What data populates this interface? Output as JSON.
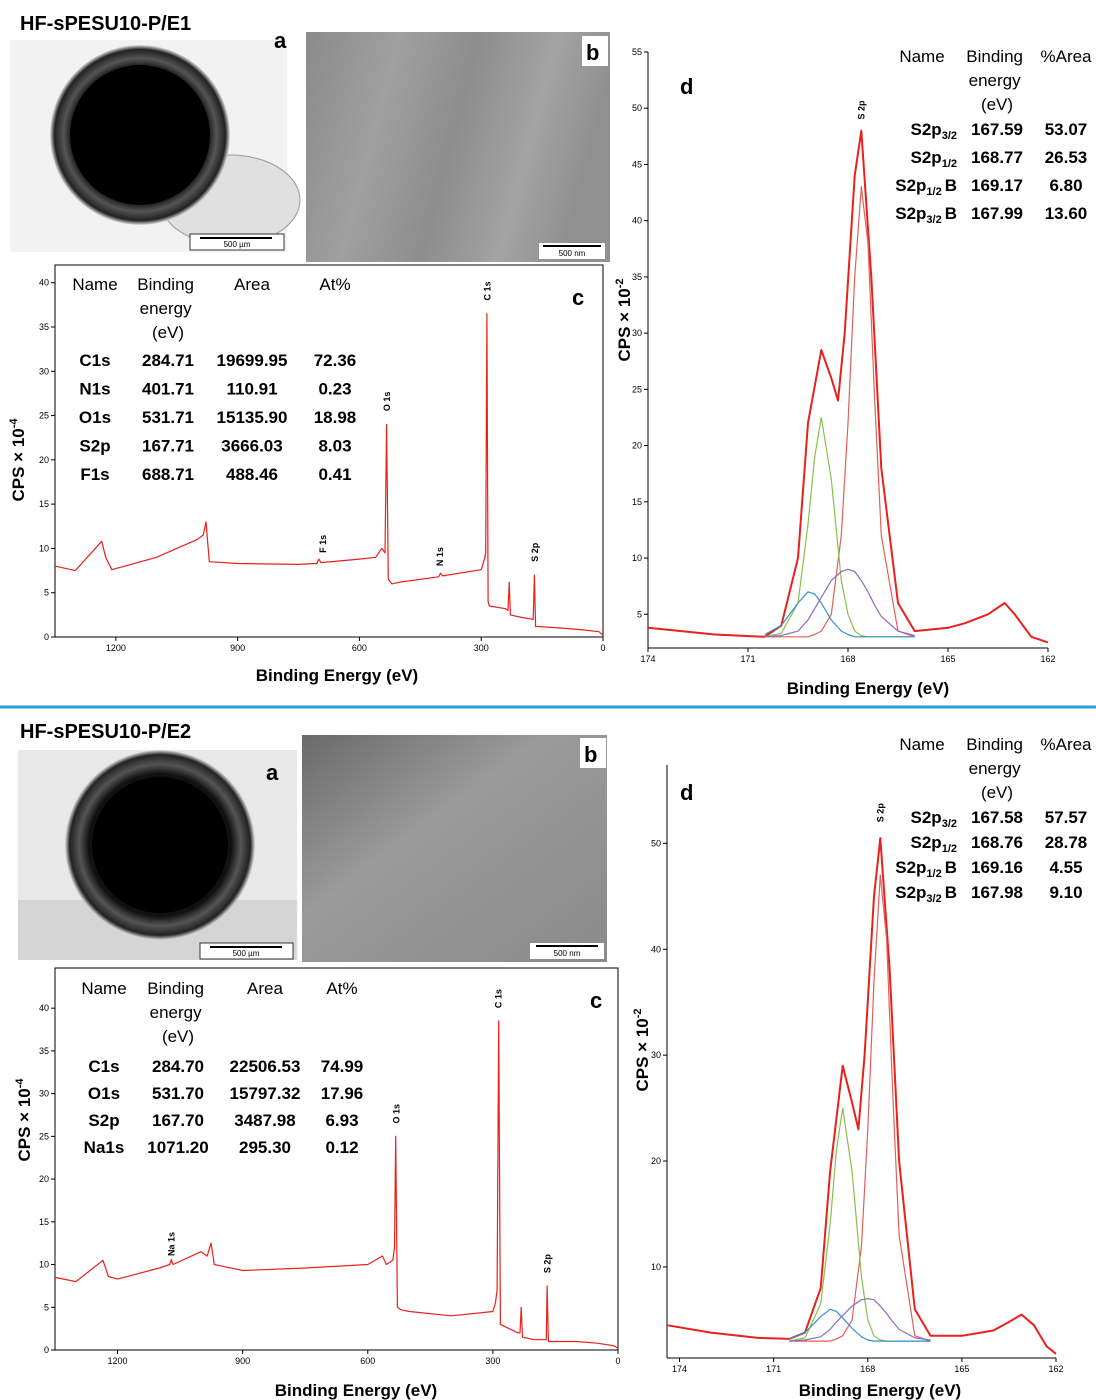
{
  "sections": [
    {
      "title": "HF-sPESU10-P/E1",
      "image_a": {
        "letter": "a",
        "scale_bar": "500 µm"
      },
      "image_b": {
        "letter": "b",
        "scale_bar": "500 nm"
      },
      "survey_table": {
        "header": [
          "Name",
          "Binding energy (eV)",
          "Area",
          "At%"
        ],
        "rows": [
          [
            "C1s",
            "284.71",
            "19699.95",
            "72.36"
          ],
          [
            "N1s",
            "401.71",
            "110.91",
            "0.23"
          ],
          [
            "O1s",
            "531.71",
            "15135.90",
            "18.98"
          ],
          [
            "S2p",
            "167.71",
            "3666.03",
            "8.03"
          ],
          [
            "F1s",
            "688.71",
            "488.46",
            "0.41"
          ]
        ]
      },
      "detail_table": {
        "header": [
          "Name",
          "Binding energy (eV)",
          "%Area"
        ],
        "rows": [
          [
            [
              "S2p",
              "3/2"
            ],
            "167.59",
            "53.07"
          ],
          [
            [
              "S2p",
              "1/2"
            ],
            "168.77",
            "26.53"
          ],
          [
            [
              "S2p",
              "1/2",
              "B"
            ],
            "169.17",
            "6.80"
          ],
          [
            [
              "S2p",
              "3/2",
              "B"
            ],
            "167.99",
            "13.60"
          ]
        ]
      }
    },
    {
      "title": "HF-sPESU10-P/E2",
      "image_a": {
        "letter": "a",
        "scale_bar": "500 µm"
      },
      "image_b": {
        "letter": "b",
        "scale_bar": "500 nm"
      },
      "survey_table": {
        "header": [
          "Name",
          "Binding energy (eV)",
          "Area",
          "At%"
        ],
        "rows": [
          [
            "C1s",
            "284.70",
            "22506.53",
            "74.99"
          ],
          [
            "O1s",
            "531.70",
            "15797.32",
            "17.96"
          ],
          [
            "S2p",
            "167.70",
            "3487.98",
            "6.93"
          ],
          [
            "Na1s",
            "1071.20",
            "295.30",
            "0.12"
          ]
        ]
      },
      "detail_table": {
        "header": [
          "Name",
          "Binding energy (eV)",
          "%Area"
        ],
        "rows": [
          [
            [
              "S2p",
              "3/2"
            ],
            "167.58",
            "57.57"
          ],
          [
            [
              "S2p",
              "1/2"
            ],
            "168.76",
            "28.78"
          ],
          [
            [
              "S2p",
              "1/2",
              "B"
            ],
            "169.16",
            "4.55"
          ],
          [
            [
              "S2p",
              "3/2",
              "B"
            ],
            "167.98",
            "9.10"
          ]
        ]
      }
    }
  ],
  "chart_data": [
    {
      "type": "line",
      "letter": "c",
      "xlabel": "Binding Energy (eV)",
      "ylabel": "CPS × 10",
      "ylabel_exponent": "-4",
      "xlim": [
        1350,
        0
      ],
      "ylim": [
        0,
        42
      ],
      "xticks": [
        1200,
        900,
        600,
        300,
        0
      ],
      "yticks": [
        0,
        5,
        10,
        15,
        20,
        25,
        30,
        35,
        40
      ],
      "series": [
        {
          "color": "#e8211c",
          "x": [
            1350,
            1300,
            1235,
            1225,
            1210,
            1100,
            1000,
            985,
            978,
            970,
            900,
            750,
            705,
            700,
            695,
            600,
            560,
            545,
            537,
            533,
            529,
            520,
            500,
            405,
            400,
            395,
            300,
            292,
            289,
            286,
            283,
            280,
            240,
            234,
            231,
            228,
            200,
            172,
            169,
            166,
            100,
            50,
            10,
            0
          ],
          "values": [
            8,
            7.5,
            10.8,
            9,
            7.6,
            9,
            11,
            11.5,
            13,
            8.5,
            8.3,
            8.2,
            8.3,
            8.8,
            8.4,
            8.8,
            9,
            10,
            9.5,
            24,
            6.5,
            6,
            6.2,
            6.8,
            7.2,
            6.9,
            7.6,
            8.8,
            9.5,
            36.5,
            4,
            3.5,
            3.2,
            3,
            6.2,
            2.5,
            2.2,
            2,
            7,
            1.2,
            1,
            0.8,
            0.6,
            0.2
          ]
        }
      ],
      "annotations": [
        {
          "text": "F 1s",
          "x": 690,
          "y": 9.5
        },
        {
          "text": "N 1s",
          "x": 402,
          "y": 8
        },
        {
          "text": "O 1s",
          "x": 532,
          "y": 25.5
        },
        {
          "text": "C 1s",
          "x": 285,
          "y": 38
        },
        {
          "text": "S 2p",
          "x": 168,
          "y": 8.5
        }
      ]
    },
    {
      "type": "line",
      "letter": "d",
      "xlabel": "Binding Energy (eV)",
      "ylabel": "CPS × 10",
      "ylabel_exponent": "-2",
      "xlim": [
        174,
        162
      ],
      "ylim": [
        2,
        55
      ],
      "xticks": [
        174,
        171,
        168,
        165,
        162
      ],
      "yticks": [
        5,
        10,
        15,
        20,
        25,
        30,
        35,
        40,
        45,
        50,
        55
      ],
      "series": [
        {
          "color": "#e8211c",
          "width": 2,
          "x": [
            174,
            172,
            170.5,
            170,
            169.5,
            169.2,
            168.8,
            168.5,
            168.3,
            168.1,
            167.8,
            167.6,
            167.3,
            167,
            166.5,
            166,
            165,
            164.5,
            163.8,
            163.3,
            163,
            162.5,
            162
          ],
          "values": [
            3.8,
            3.2,
            3,
            4,
            10,
            22,
            28.5,
            26,
            24,
            30,
            44,
            48,
            35,
            18,
            6,
            3.5,
            3.8,
            4.2,
            5,
            6,
            5,
            3,
            2.5
          ]
        },
        {
          "color": "#e0605a",
          "x": [
            170.5,
            170,
            169.5,
            169.2,
            169,
            168.8,
            168.5,
            168.2,
            168,
            167.8,
            167.6,
            167.4,
            167.2,
            167,
            166.5,
            166
          ],
          "values": [
            3,
            3,
            3,
            3,
            3.2,
            3.5,
            5,
            12,
            22,
            35,
            43,
            38,
            24,
            12,
            3.5,
            3
          ]
        },
        {
          "color": "#8bbf4a",
          "x": [
            170.5,
            170,
            169.5,
            169.2,
            169,
            168.8,
            168.5,
            168.2,
            168,
            167.8,
            167.6,
            167.4,
            167.2,
            167,
            166.5,
            166
          ],
          "values": [
            3,
            3.3,
            6,
            13,
            19,
            22.5,
            17,
            8,
            5,
            3.5,
            3.1,
            3,
            3,
            3,
            3,
            3
          ]
        },
        {
          "color": "#3a8fd1",
          "x": [
            170.5,
            170,
            169.5,
            169.2,
            169,
            168.8,
            168.5,
            168.2,
            168,
            167.8,
            167.6,
            167.4,
            167.2,
            167,
            166.5,
            166
          ],
          "values": [
            3.2,
            4,
            6,
            7,
            6.8,
            6,
            4.5,
            3.5,
            3.2,
            3,
            3,
            3,
            3,
            3,
            3,
            3
          ]
        },
        {
          "color": "#8e6bbf",
          "x": [
            170.5,
            170,
            169.5,
            169.2,
            169,
            168.8,
            168.5,
            168.2,
            168,
            167.8,
            167.6,
            167.4,
            167.2,
            167,
            166.5,
            166
          ],
          "values": [
            3,
            3.1,
            3.5,
            4.5,
            5.5,
            6.5,
            8,
            8.8,
            9,
            8.8,
            8,
            7,
            5.8,
            4.8,
            3.5,
            3.1
          ]
        }
      ],
      "annotations": [
        {
          "text": "S 2p",
          "x": 167.6,
          "y": 49
        }
      ]
    },
    {
      "type": "line",
      "letter": "c",
      "xlabel": "Binding Energy (eV)",
      "ylabel": "CPS × 10",
      "ylabel_exponent": "-4",
      "xlim": [
        1350,
        0
      ],
      "ylim": [
        0,
        44.7
      ],
      "xticks": [
        1200,
        900,
        600,
        300,
        0
      ],
      "yticks": [
        0,
        5,
        10,
        15,
        20,
        25,
        30,
        35,
        40
      ],
      "series": [
        {
          "color": "#e8211c",
          "x": [
            1350,
            1300,
            1235,
            1222,
            1200,
            1100,
            1075,
            1071,
            1067,
            1000,
            985,
            976,
            968,
            940,
            900,
            750,
            600,
            565,
            555,
            540,
            536,
            533,
            529,
            520,
            500,
            400,
            300,
            294,
            290,
            286,
            282,
            240,
            235,
            232,
            229,
            200,
            172,
            170,
            167,
            100,
            50,
            10,
            0
          ],
          "values": [
            8.5,
            8,
            10.5,
            8.6,
            8.3,
            9.6,
            10,
            10.6,
            10,
            11.5,
            11,
            12.5,
            10,
            9.7,
            9.3,
            9.6,
            10,
            11,
            10,
            10.5,
            12,
            25,
            5,
            4.7,
            4.5,
            4,
            4.5,
            5.5,
            7,
            38.5,
            3,
            2,
            2,
            5,
            1.5,
            1.2,
            1.2,
            7.5,
            1,
            1,
            0.8,
            0.5,
            0.2
          ]
        }
      ],
      "annotations": [
        {
          "text": "Na 1s",
          "x": 1071,
          "y": 11
        },
        {
          "text": "O 1s",
          "x": 531,
          "y": 26.5
        },
        {
          "text": "C 1s",
          "x": 286,
          "y": 40
        },
        {
          "text": "S 2p",
          "x": 169,
          "y": 9
        }
      ]
    },
    {
      "type": "line",
      "letter": "d",
      "xlabel": "Binding Energy (eV)",
      "ylabel": "CPS × 10",
      "ylabel_exponent": "-2",
      "xlim": [
        174.4,
        162
      ],
      "ylim": [
        1.4,
        57.4
      ],
      "xticks": [
        174,
        171,
        168,
        165,
        162
      ],
      "yticks": [
        10,
        20,
        30,
        40,
        50
      ],
      "series": [
        {
          "color": "#e8211c",
          "width": 2,
          "x": [
            174.4,
            173,
            171.5,
            170.5,
            170,
            169.5,
            169.2,
            168.8,
            168.5,
            168.3,
            168.1,
            167.8,
            167.6,
            167.3,
            167,
            166.5,
            166,
            165,
            164,
            163.5,
            163.1,
            162.7,
            162.3,
            162
          ],
          "values": [
            4.5,
            3.8,
            3.3,
            3.2,
            3.8,
            8,
            19,
            29,
            25.5,
            23,
            30,
            45,
            50.5,
            38,
            20,
            6,
            3.5,
            3.5,
            4,
            4.8,
            5.5,
            4.5,
            2.5,
            1.8
          ]
        },
        {
          "color": "#e0605a",
          "x": [
            170.5,
            170,
            169.5,
            169.2,
            169,
            168.8,
            168.5,
            168.2,
            168,
            167.8,
            167.6,
            167.4,
            167.2,
            167,
            166.5,
            166
          ],
          "values": [
            3,
            3,
            3,
            3,
            3.2,
            3.5,
            5,
            12,
            23,
            37,
            47,
            41,
            26,
            13,
            3.5,
            3
          ]
        },
        {
          "color": "#8bbf4a",
          "x": [
            170.5,
            170,
            169.5,
            169.2,
            169,
            168.8,
            168.5,
            168.2,
            168,
            167.8,
            167.6,
            167.4,
            167.2,
            167,
            166.5,
            166
          ],
          "values": [
            3,
            3.3,
            6.5,
            14,
            21,
            25,
            19,
            9,
            5,
            3.5,
            3.1,
            3,
            3,
            3,
            3,
            3
          ]
        },
        {
          "color": "#3a8fd1",
          "x": [
            170.5,
            170,
            169.5,
            169.2,
            169,
            168.8,
            168.5,
            168.2,
            168,
            167.8,
            167.6,
            167.4,
            167.2,
            167,
            166.5,
            166
          ],
          "values": [
            3.2,
            3.8,
            5.3,
            6,
            5.8,
            5.2,
            4.2,
            3.4,
            3.1,
            3,
            3,
            3,
            3,
            3,
            3,
            3
          ]
        },
        {
          "color": "#8e6bbf",
          "x": [
            170.5,
            170,
            169.5,
            169.2,
            169,
            168.8,
            168.5,
            168.2,
            168,
            167.8,
            167.6,
            167.4,
            167.2,
            167,
            166.5,
            166
          ],
          "values": [
            3,
            3.1,
            3.4,
            4.1,
            4.8,
            5.4,
            6.3,
            6.9,
            7,
            6.9,
            6.3,
            5.6,
            4.8,
            4.1,
            3.3,
            3.1
          ]
        }
      ],
      "annotations": [
        {
          "text": "S 2p",
          "x": 167.6,
          "y": 52
        }
      ]
    }
  ]
}
